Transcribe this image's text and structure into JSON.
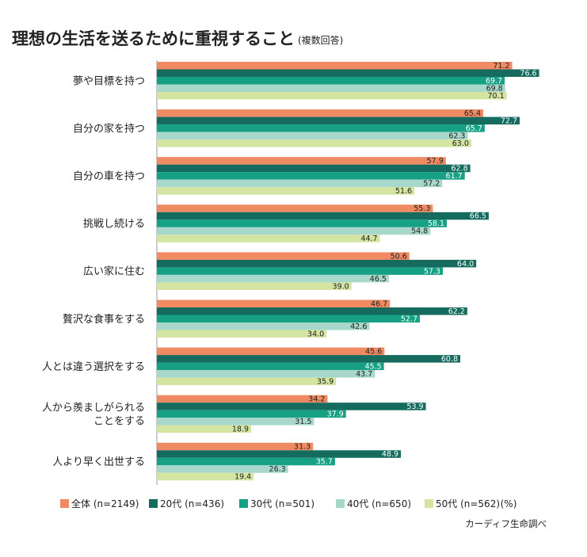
{
  "chart_data": {
    "type": "bar",
    "orientation": "horizontal",
    "title": "理想の生活を送るために重視すること",
    "subtitle": "(複数回答)",
    "unit_label": "(%)",
    "source": "カーディフ生命調べ",
    "categories": [
      [
        "夢や目標を持つ"
      ],
      [
        "自分の家を持つ"
      ],
      [
        "自分の車を持つ"
      ],
      [
        "挑戦し続ける"
      ],
      [
        "広い家に住む"
      ],
      [
        "贅沢な食事をする"
      ],
      [
        "人とは違う選択をする"
      ],
      [
        "人から羨ましがられる",
        "ことをする"
      ],
      [
        "人より早く出世する"
      ]
    ],
    "series": [
      {
        "name": "全体 (n=2149)",
        "color": "#ef8a62",
        "label_color": "#222222",
        "values": [
          71.2,
          65.4,
          57.9,
          55.3,
          50.6,
          46.7,
          45.6,
          34.2,
          31.3
        ]
      },
      {
        "name": "20代 (n=436)",
        "color": "#146b5e",
        "label_color": "#ffffff",
        "values": [
          76.6,
          72.7,
          62.8,
          66.5,
          64.0,
          62.2,
          60.8,
          53.9,
          48.9
        ]
      },
      {
        "name": "30代 (n=501)",
        "color": "#16a084",
        "label_color": "#ffffff",
        "values": [
          69.7,
          65.7,
          61.7,
          58.1,
          57.3,
          52.7,
          45.5,
          37.9,
          35.7
        ]
      },
      {
        "name": "40代 (n=650)",
        "color": "#a8d8cb",
        "label_color": "#222222",
        "values": [
          69.8,
          62.3,
          57.2,
          54.8,
          46.5,
          42.6,
          43.7,
          31.5,
          26.3
        ]
      },
      {
        "name": "50代 (n=562)",
        "color": "#d4e5a1",
        "label_color": "#222222",
        "values": [
          70.1,
          63.0,
          51.6,
          44.7,
          39.0,
          34.0,
          35.9,
          18.9,
          19.4
        ]
      }
    ],
    "xlim": [
      0,
      100
    ],
    "grid": false,
    "legend_position": "bottom"
  }
}
